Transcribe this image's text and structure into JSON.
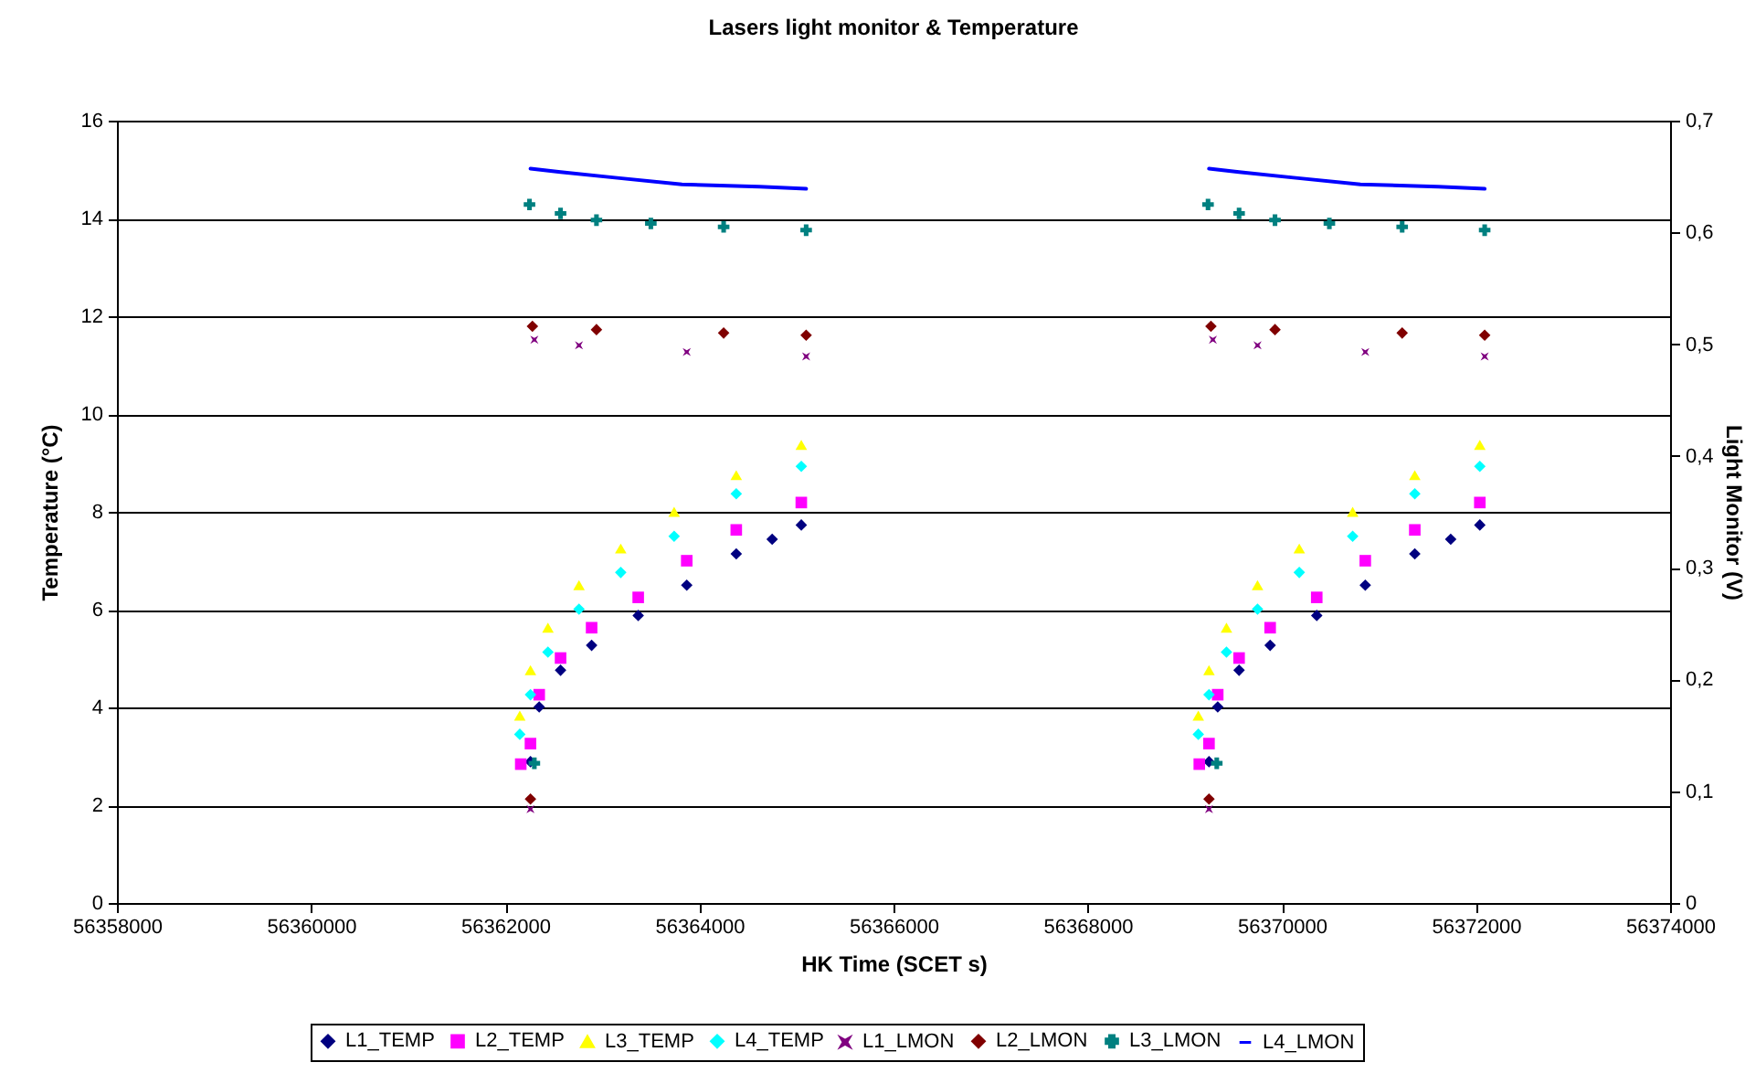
{
  "chart_data": {
    "type": "scatter",
    "title": "Lasers light monitor & Temperature",
    "xlabel": "HK Time (SCET s)",
    "ylabel": "Temperature (°C)",
    "y2label": "Light Monitor (V)",
    "xlim": [
      56358000,
      56374000
    ],
    "xticks": [
      56358000,
      56360000,
      56362000,
      56364000,
      56366000,
      56368000,
      56370000,
      56372000,
      56374000
    ],
    "ylim": [
      0,
      16
    ],
    "yticks": [
      0,
      2,
      4,
      6,
      8,
      10,
      12,
      14,
      16
    ],
    "y2lim": [
      0,
      0.7
    ],
    "y2ticks": [
      {
        "value": 0,
        "label": "0"
      },
      {
        "value": 0.1,
        "label": "0,1"
      },
      {
        "value": 0.2,
        "label": "0,2"
      },
      {
        "value": 0.3,
        "label": "0,3"
      },
      {
        "value": 0.4,
        "label": "0,4"
      },
      {
        "value": 0.5,
        "label": "0,5"
      },
      {
        "value": 0.6,
        "label": "0,6"
      },
      {
        "value": 0.7,
        "label": "0,7"
      }
    ],
    "grid": "y",
    "legend": "bottom",
    "series": [
      {
        "name": "L1_TEMP",
        "color": "#000080",
        "marker": "diamond",
        "x": [
          56362260,
          56362350,
          56362570,
          56362890,
          56363370,
          56363870,
          56364380,
          56364750,
          56365050,
          56369250,
          56369340,
          56369560,
          56369880,
          56370360,
          56370860,
          56371370,
          56371740,
          56372040
        ],
        "values": [
          2.89,
          4.01,
          4.76,
          5.27,
          5.88,
          6.5,
          7.14,
          7.44,
          7.73,
          2.89,
          4.01,
          4.76,
          5.27,
          5.88,
          6.5,
          7.14,
          7.44,
          7.73
        ]
      },
      {
        "name": "L2_TEMP",
        "color": "#ff00ff",
        "marker": "square",
        "x": [
          56362160,
          56362260,
          56362350,
          56362570,
          56362890,
          56363370,
          56363870,
          56364380,
          56365050,
          56369150,
          56369250,
          56369340,
          56369560,
          56369880,
          56370360,
          56370860,
          56371370,
          56372040
        ],
        "values": [
          2.84,
          3.26,
          4.26,
          5.01,
          5.63,
          6.25,
          7.0,
          7.63,
          8.19,
          2.84,
          3.26,
          4.26,
          5.01,
          5.63,
          6.25,
          7.0,
          7.63,
          8.19
        ]
      },
      {
        "name": "L3_TEMP",
        "color": "#ffff00",
        "marker": "triangle",
        "x": [
          56362150,
          56362260,
          56362440,
          56362760,
          56363190,
          56363740,
          56364380,
          56365050,
          56369140,
          56369250,
          56369430,
          56369750,
          56370180,
          56370730,
          56371370,
          56372040
        ],
        "values": [
          3.83,
          4.76,
          5.63,
          6.5,
          7.25,
          8.0,
          8.75,
          9.37,
          3.83,
          4.76,
          5.63,
          6.5,
          7.25,
          8.0,
          8.75,
          9.37
        ]
      },
      {
        "name": "L4_TEMP",
        "color": "#00ffff",
        "marker": "diamond",
        "x": [
          56362150,
          56362260,
          56362440,
          56362760,
          56363190,
          56363740,
          56364380,
          56365050,
          56369140,
          56369250,
          56369430,
          56369750,
          56370180,
          56370730,
          56371370,
          56372040
        ],
        "values": [
          3.45,
          4.26,
          5.13,
          6.01,
          6.76,
          7.5,
          8.37,
          8.93,
          3.45,
          4.26,
          5.13,
          6.01,
          6.76,
          7.5,
          8.37,
          8.93
        ]
      },
      {
        "name": "L1_LMON",
        "color": "#800080",
        "marker": "star",
        "axis": "y2",
        "x": [
          56362260,
          56362300,
          56362760,
          56363870,
          56365100,
          56369250,
          56369290,
          56369750,
          56370860,
          56372090
        ],
        "values": [
          0.084,
          0.504,
          0.499,
          0.493,
          0.489,
          0.084,
          0.504,
          0.499,
          0.493,
          0.489
        ]
      },
      {
        "name": "L2_LMON",
        "color": "#800000",
        "marker": "diamond",
        "axis": "y2",
        "x": [
          56362260,
          56362280,
          56362940,
          56364250,
          56365100,
          56369250,
          56369270,
          56369930,
          56371240,
          56372090
        ],
        "values": [
          0.093,
          0.516,
          0.513,
          0.51,
          0.508,
          0.093,
          0.516,
          0.513,
          0.51,
          0.508
        ]
      },
      {
        "name": "L3_LMON",
        "color": "#008080",
        "marker": "cross",
        "axis": "y2",
        "x": [
          56362300,
          56362250,
          56362570,
          56362940,
          56363500,
          56364250,
          56365100,
          56369330,
          56369240,
          56369560,
          56369930,
          56370490,
          56371240,
          56372090
        ],
        "values": [
          0.125,
          0.625,
          0.617,
          0.611,
          0.608,
          0.605,
          0.602,
          0.125,
          0.625,
          0.617,
          0.611,
          0.608,
          0.605,
          0.602
        ]
      },
      {
        "name": "L4_LMON",
        "color": "#0000ff",
        "type": "line",
        "marker": "none",
        "axis": "y2",
        "x": [
          56362260,
          56362570,
          56363130,
          56363820,
          56364620,
          56365100,
          null,
          56369250,
          56369560,
          56370120,
          56370810,
          56371610,
          56372090
        ],
        "values": [
          0.657,
          0.654,
          0.649,
          0.643,
          0.641,
          0.639,
          null,
          0.657,
          0.654,
          0.649,
          0.643,
          0.641,
          0.639
        ]
      }
    ]
  }
}
